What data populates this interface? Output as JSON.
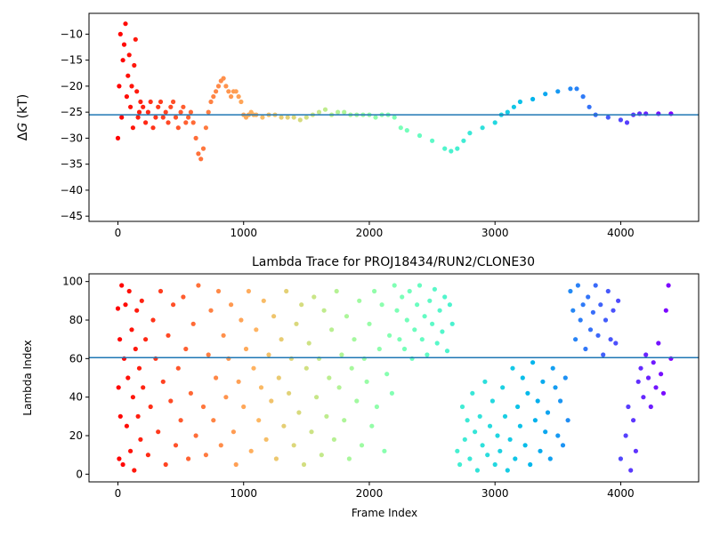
{
  "chart_data": [
    {
      "type": "scatter",
      "title": "",
      "xlabel": "",
      "ylabel": "ΔG (kT)",
      "ylabel_parts": {
        "delta": "Δ",
        "var": "G",
        "unit": " (kT)"
      },
      "xlim": [
        -230,
        4620
      ],
      "ylim": [
        -46,
        -6
      ],
      "xticks": [
        0,
        1000,
        2000,
        3000,
        4000
      ],
      "yticks": [
        -45,
        -40,
        -35,
        -30,
        -25,
        -20,
        -15,
        -10
      ],
      "hline": -25.5,
      "colormap": "rainbow (high at start, low at end)",
      "series": [
        {
          "x": [
            0,
            10,
            20,
            30,
            40,
            50,
            60,
            70,
            80,
            90,
            100,
            110,
            120,
            130,
            140,
            150,
            160,
            170,
            180,
            200,
            220,
            240,
            260,
            280,
            300,
            320,
            340,
            360,
            380,
            400,
            420,
            440,
            460,
            480,
            500,
            520,
            540,
            560,
            580,
            600,
            620,
            640,
            660,
            680,
            700,
            720,
            740,
            760,
            780,
            800,
            820,
            840,
            860,
            880,
            900,
            920,
            940,
            960,
            980,
            1000,
            1020,
            1040,
            1060,
            1080,
            1100,
            1150,
            1200,
            1250,
            1300,
            1350,
            1400,
            1450,
            1500,
            1550,
            1600,
            1650,
            1700,
            1750,
            1800,
            1850,
            1900,
            1950,
            2000,
            2050,
            2100,
            2150,
            2200,
            2250,
            2300,
            2400,
            2500,
            2600,
            2650,
            2700,
            2750,
            2800,
            2900,
            3000,
            3050,
            3100,
            3150,
            3200,
            3300,
            3400,
            3500,
            3600,
            3650,
            3700,
            3750,
            3800,
            3900,
            4000,
            4050,
            4100,
            4150,
            4200,
            4300,
            4400
          ],
          "y": [
            -30,
            -20,
            -10,
            -26,
            -15,
            -12,
            -8,
            -22,
            -18,
            -14,
            -24,
            -20,
            -28,
            -16,
            -11,
            -21,
            -26,
            -25,
            -23,
            -24,
            -27,
            -25,
            -23,
            -28,
            -26,
            -24,
            -23,
            -26,
            -25,
            -27,
            -24,
            -23,
            -26,
            -28,
            -25,
            -24,
            -27,
            -26,
            -25,
            -27,
            -30,
            -33,
            -34,
            -32,
            -28,
            -25,
            -23,
            -22,
            -21,
            -20,
            -19,
            -18.5,
            -20,
            -21,
            -22,
            -21,
            -21,
            -22,
            -23,
            -25.5,
            -26,
            -25.5,
            -25,
            -25.5,
            -25.5,
            -26,
            -25.5,
            -25.5,
            -26,
            -26,
            -26,
            -26.5,
            -26,
            -25.5,
            -25,
            -24.5,
            -25.5,
            -25,
            -25,
            -25.5,
            -25.5,
            -25.5,
            -25.5,
            -26,
            -25.5,
            -25.5,
            -26,
            -28,
            -28.5,
            -29.5,
            -30.5,
            -32,
            -32.5,
            -32,
            -30.5,
            -29,
            -28,
            -27,
            -25.5,
            -25,
            -24,
            -23,
            -22.5,
            -21.5,
            -21,
            -20.5,
            -20.5,
            -22,
            -24,
            -25.5,
            -26,
            -26.5,
            -27,
            -25.5,
            -25.3,
            -25.3,
            -25.3,
            -25.3
          ]
        }
      ]
    },
    {
      "type": "scatter",
      "title": "Lambda Trace for PROJ18434/RUN2/CLONE30",
      "xlabel": "Frame Index",
      "ylabel": "Lambda Index",
      "xlim": [
        -230,
        4620
      ],
      "ylim": [
        -4,
        104
      ],
      "xticks": [
        0,
        1000,
        2000,
        3000,
        4000
      ],
      "yticks": [
        0,
        20,
        40,
        60,
        80,
        100
      ],
      "hline": 60.5,
      "colormap": "rainbow (high at start, low at end)",
      "series": [
        {
          "x": [
            0,
            5,
            10,
            15,
            20,
            30,
            40,
            50,
            60,
            70,
            80,
            90,
            100,
            110,
            120,
            130,
            140,
            150,
            160,
            170,
            180,
            190,
            200,
            220,
            240,
            260,
            280,
            300,
            320,
            340,
            360,
            380,
            400,
            420,
            440,
            460,
            480,
            500,
            520,
            540,
            560,
            580,
            600,
            620,
            640,
            680,
            700,
            720,
            740,
            760,
            780,
            800,
            820,
            840,
            860,
            880,
            900,
            920,
            940,
            960,
            980,
            1000,
            1020,
            1040,
            1060,
            1080,
            1100,
            1120,
            1140,
            1160,
            1180,
            1200,
            1220,
            1240,
            1260,
            1280,
            1300,
            1320,
            1340,
            1360,
            1380,
            1400,
            1420,
            1440,
            1460,
            1480,
            1500,
            1520,
            1540,
            1560,
            1580,
            1600,
            1620,
            1640,
            1660,
            1680,
            1700,
            1720,
            1740,
            1760,
            1780,
            1800,
            1820,
            1840,
            1860,
            1880,
            1900,
            1920,
            1940,
            1960,
            1980,
            2000,
            2020,
            2040,
            2060,
            2080,
            2100,
            2120,
            2140,
            2160,
            2180,
            2200,
            2220,
            2240,
            2260,
            2280,
            2300,
            2320,
            2340,
            2360,
            2380,
            2400,
            2420,
            2440,
            2460,
            2480,
            2500,
            2520,
            2540,
            2560,
            2580,
            2600,
            2620,
            2640,
            2660,
            2700,
            2720,
            2740,
            2760,
            2780,
            2800,
            2820,
            2840,
            2860,
            2880,
            2900,
            2920,
            2940,
            2960,
            2980,
            3000,
            3020,
            3040,
            3060,
            3080,
            3100,
            3120,
            3140,
            3160,
            3180,
            3200,
            3220,
            3240,
            3260,
            3280,
            3300,
            3320,
            3340,
            3360,
            3380,
            3400,
            3420,
            3440,
            3460,
            3480,
            3500,
            3520,
            3540,
            3560,
            3580,
            3600,
            3620,
            3640,
            3660,
            3680,
            3700,
            3720,
            3740,
            3760,
            3780,
            3800,
            3820,
            3840,
            3860,
            3880,
            3900,
            3920,
            3940,
            3960,
            3980,
            4000,
            4040,
            4060,
            4080,
            4100,
            4120,
            4140,
            4160,
            4180,
            4200,
            4220,
            4240,
            4260,
            4280,
            4300,
            4320,
            4340,
            4360,
            4380,
            4400
          ],
          "y": [
            86,
            45,
            8,
            70,
            30,
            98,
            5,
            60,
            88,
            25,
            50,
            95,
            12,
            75,
            40,
            2,
            65,
            85,
            30,
            55,
            18,
            90,
            45,
            70,
            10,
            35,
            80,
            60,
            22,
            95,
            48,
            5,
            72,
            38,
            88,
            15,
            55,
            28,
            92,
            65,
            8,
            42,
            78,
            20,
            98,
            35,
            10,
            62,
            85,
            28,
            50,
            95,
            15,
            72,
            40,
            60,
            88,
            22,
            5,
            48,
            80,
            35,
            65,
            95,
            12,
            55,
            75,
            28,
            45,
            90,
            18,
            62,
            38,
            82,
            8,
            50,
            70,
            25,
            95,
            42,
            60,
            15,
            78,
            32,
            88,
            5,
            55,
            68,
            22,
            92,
            40,
            60,
            10,
            85,
            30,
            50,
            75,
            18,
            95,
            45,
            62,
            28,
            82,
            8,
            55,
            70,
            38,
            90,
            15,
            60,
            48,
            78,
            25,
            95,
            35,
            65,
            88,
            12,
            52,
            72,
            42,
            98,
            85,
            70,
            92,
            65,
            80,
            95,
            60,
            75,
            88,
            98,
            70,
            82,
            62,
            90,
            78,
            96,
            68,
            85,
            74,
            92,
            64,
            88,
            78,
            12,
            5,
            35,
            18,
            28,
            8,
            42,
            22,
            2,
            30,
            15,
            48,
            10,
            25,
            38,
            5,
            20,
            12,
            45,
            30,
            2,
            18,
            55,
            8,
            35,
            25,
            50,
            15,
            42,
            5,
            58,
            28,
            38,
            12,
            48,
            22,
            32,
            8,
            55,
            45,
            20,
            38,
            15,
            50,
            28,
            95,
            85,
            70,
            98,
            80,
            88,
            65,
            92,
            75,
            84,
            98,
            72,
            88,
            62,
            80,
            95,
            70,
            85,
            68,
            90,
            8,
            20,
            35,
            2,
            28,
            12,
            48,
            55,
            40,
            62,
            50,
            35,
            58,
            45,
            68,
            52,
            42,
            85,
            98,
            60
          ]
        }
      ]
    }
  ]
}
